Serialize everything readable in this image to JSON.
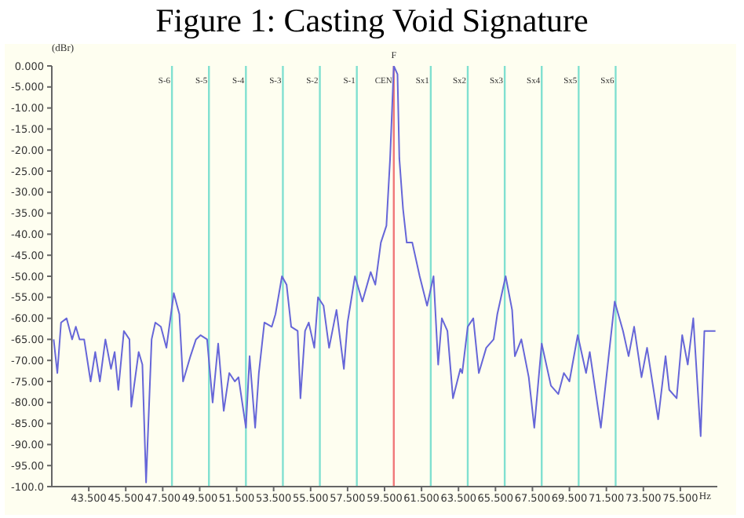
{
  "chart_data": {
    "type": "line",
    "title": "Figure 1: Casting Void Signature",
    "xlabel": "Hz",
    "ylabel": "(dBr)",
    "xlim": [
      41.5,
      77.5
    ],
    "ylim": [
      -100,
      0
    ],
    "xticks": [
      {
        "value": 43.5,
        "label": "43.500"
      },
      {
        "value": 45.5,
        "label": "45.500"
      },
      {
        "value": 47.5,
        "label": "47.500"
      },
      {
        "value": 49.5,
        "label": "49.500"
      },
      {
        "value": 51.5,
        "label": "51.500"
      },
      {
        "value": 53.5,
        "label": "53.500"
      },
      {
        "value": 55.5,
        "label": "55.500"
      },
      {
        "value": 57.5,
        "label": "57.500"
      },
      {
        "value": 59.5,
        "label": "59.500"
      },
      {
        "value": 61.5,
        "label": "61.500"
      },
      {
        "value": 63.5,
        "label": "63.500"
      },
      {
        "value": 65.5,
        "label": "65.500"
      },
      {
        "value": 67.5,
        "label": "67.500"
      },
      {
        "value": 69.5,
        "label": "69.500"
      },
      {
        "value": 71.5,
        "label": "71.500"
      },
      {
        "value": 73.5,
        "label": "73.500"
      },
      {
        "value": 75.5,
        "label": "75.500"
      }
    ],
    "yticks": [
      {
        "value": 0,
        "label": "0.000"
      },
      {
        "value": -5,
        "label": "-5.000"
      },
      {
        "value": -10,
        "label": "-10.00"
      },
      {
        "value": -15,
        "label": "-15.00"
      },
      {
        "value": -20,
        "label": "-20.00"
      },
      {
        "value": -25,
        "label": "-25.00"
      },
      {
        "value": -30,
        "label": "-30.00"
      },
      {
        "value": -35,
        "label": "-35.00"
      },
      {
        "value": -40,
        "label": "-40.00"
      },
      {
        "value": -45,
        "label": "-45.00"
      },
      {
        "value": -50,
        "label": "-50.00"
      },
      {
        "value": -55,
        "label": "-55.00"
      },
      {
        "value": -60,
        "label": "-60.00"
      },
      {
        "value": -65,
        "label": "-65.00"
      },
      {
        "value": -70,
        "label": "-70.00"
      },
      {
        "value": -75,
        "label": "-75.00"
      },
      {
        "value": -80,
        "label": "-80.00"
      },
      {
        "value": -85,
        "label": "-85.00"
      },
      {
        "value": -90,
        "label": "-90.00"
      },
      {
        "value": -95,
        "label": "-95.00"
      },
      {
        "value": -100,
        "label": "-100.0"
      }
    ],
    "grid": false,
    "legend": false,
    "marker": "none",
    "line_style": "solid",
    "x": [
      41.6,
      41.8,
      41.9,
      42.0,
      42.3,
      42.6,
      42.8,
      43.0,
      43.25,
      43.6,
      43.85,
      44.1,
      44.4,
      44.7,
      44.9,
      45.1,
      45.4,
      45.7,
      45.8,
      46.2,
      46.4,
      46.6,
      46.9,
      47.1,
      47.4,
      47.7,
      48.1,
      48.4,
      48.6,
      49.0,
      49.3,
      49.55,
      49.9,
      50.2,
      50.5,
      50.8,
      51.1,
      51.4,
      51.6,
      52.0,
      52.2,
      52.5,
      52.7,
      53.0,
      53.4,
      53.6,
      53.95,
      54.2,
      54.45,
      54.8,
      54.95,
      55.2,
      55.4,
      55.7,
      55.9,
      56.2,
      56.5,
      56.9,
      57.3,
      57.5,
      57.9,
      58.3,
      58.75,
      59.0,
      59.3,
      59.6,
      59.8,
      60.0,
      60.2,
      60.3,
      60.5,
      60.7,
      61.0,
      61.4,
      61.8,
      62.15,
      62.4,
      62.6,
      62.9,
      63.2,
      63.6,
      63.7,
      64.0,
      64.3,
      64.6,
      65.0,
      65.4,
      65.6,
      66.05,
      66.4,
      66.55,
      66.9,
      67.3,
      67.6,
      68.0,
      68.5,
      68.9,
      69.2,
      69.5,
      69.95,
      70.4,
      70.6,
      71.2,
      71.6,
      71.95,
      72.4,
      72.7,
      73.0,
      73.4,
      73.7,
      74.3,
      74.7,
      74.9,
      75.3,
      75.6,
      75.9,
      76.2,
      76.6,
      76.8,
      77.4
    ],
    "series": [
      {
        "color": "#6666d8",
        "values": [
          -65,
          -73,
          -67,
          -61,
          -60,
          -65,
          -62,
          -65,
          -65,
          -75,
          -68,
          -75,
          -65,
          -72,
          -68,
          -77,
          -63,
          -65,
          -81,
          -68,
          -71,
          -99,
          -65,
          -61,
          -62,
          -67,
          -54,
          -59,
          -75,
          -69,
          -65,
          -64,
          -65,
          -80,
          -66,
          -82,
          -73,
          -75,
          -74,
          -86,
          -69,
          -86,
          -73,
          -61,
          -62,
          -59,
          -50,
          -52,
          -62,
          -63,
          -79,
          -63,
          -61,
          -67,
          -55,
          -57,
          -67,
          -58,
          -72,
          -61,
          -50,
          -56,
          -49,
          -52,
          -42,
          -38,
          -22,
          0,
          -2,
          -22,
          -34,
          -42,
          -42,
          -50,
          -57,
          -50,
          -71,
          -60,
          -63,
          -79,
          -72,
          -73,
          -62,
          -60,
          -73,
          -67,
          -65,
          -59,
          -50,
          -58,
          -69,
          -65,
          -74,
          -86,
          -66,
          -76,
          -78,
          -73,
          -75,
          -64,
          -73,
          -68,
          -86,
          -70,
          -56,
          -63,
          -69,
          -62,
          -74,
          -67,
          -84,
          -69,
          -77,
          -79,
          -64,
          -71,
          -60,
          -88,
          -63,
          -63
        ]
      }
    ],
    "ref_lines": [
      {
        "axis": "x",
        "value": 48,
        "label": "S-6",
        "color": "#80e0d0"
      },
      {
        "axis": "x",
        "value": 50,
        "label": "S-5",
        "color": "#80e0d0"
      },
      {
        "axis": "x",
        "value": 52,
        "label": "S-4",
        "color": "#80e0d0"
      },
      {
        "axis": "x",
        "value": 54,
        "label": "S-3",
        "color": "#80e0d0"
      },
      {
        "axis": "x",
        "value": 56,
        "label": "S-2",
        "color": "#80e0d0"
      },
      {
        "axis": "x",
        "value": 58,
        "label": "S-1",
        "color": "#80e0d0"
      },
      {
        "axis": "x",
        "value": 60,
        "label": "CEN",
        "color": "#f07878"
      },
      {
        "axis": "x",
        "value": 62,
        "label": "Sx1",
        "color": "#80e0d0"
      },
      {
        "axis": "x",
        "value": 64,
        "label": "Sx2",
        "color": "#80e0d0"
      },
      {
        "axis": "x",
        "value": 66,
        "label": "Sx3",
        "color": "#80e0d0"
      },
      {
        "axis": "x",
        "value": 68,
        "label": "Sx4",
        "color": "#80e0d0"
      },
      {
        "axis": "x",
        "value": 70,
        "label": "Sx5",
        "color": "#80e0d0"
      },
      {
        "axis": "x",
        "value": 72,
        "label": "Sx6",
        "color": "#80e0d0"
      }
    ],
    "annotations": [
      {
        "text": "F",
        "x": 60,
        "y": 0
      }
    ]
  }
}
